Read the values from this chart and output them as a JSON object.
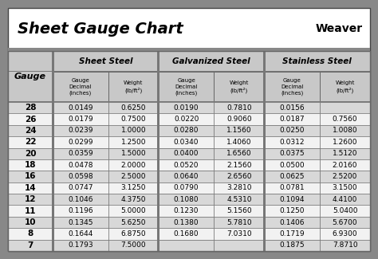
{
  "title": "Sheet Gauge Chart",
  "outer_bg": "#888888",
  "inner_bg": "#ffffff",
  "header_gray": "#c8c8c8",
  "row_gray": "#d8d8d8",
  "row_white": "#f2f2f2",
  "border_color": "#666666",
  "section_headers": [
    "Sheet Steel",
    "Galvanized Steel",
    "Stainless Steel"
  ],
  "gauges": [
    28,
    26,
    24,
    22,
    20,
    18,
    16,
    14,
    12,
    11,
    10,
    8,
    7
  ],
  "sheet_steel_decimal": [
    "0.0149",
    "0.0179",
    "0.0239",
    "0.0299",
    "0.0359",
    "0.0478",
    "0.0598",
    "0.0747",
    "0.1046",
    "0.1196",
    "0.1345",
    "0.1644",
    "0.1793"
  ],
  "sheet_steel_weight": [
    "0.6250",
    "0.7500",
    "1.0000",
    "1.2500",
    "1.5000",
    "2.0000",
    "2.5000",
    "3.1250",
    "4.3750",
    "5.0000",
    "5.6250",
    "6.8750",
    "7.5000"
  ],
  "galvanized_decimal": [
    "0.0190",
    "0.0220",
    "0.0280",
    "0.0340",
    "0.0400",
    "0.0520",
    "0.0640",
    "0.0790",
    "0.1080",
    "0.1230",
    "0.1380",
    "0.1680",
    ""
  ],
  "galvanized_weight": [
    "0.7810",
    "0.9060",
    "1.1560",
    "1.4060",
    "1.6560",
    "2.1560",
    "2.6560",
    "3.2810",
    "4.5310",
    "5.1560",
    "5.7810",
    "7.0310",
    ""
  ],
  "stainless_decimal": [
    "0.0156",
    "0.0187",
    "0.0250",
    "0.0312",
    "0.0375",
    "0.0500",
    "0.0625",
    "0.0781",
    "0.1094",
    "0.1250",
    "0.1406",
    "0.1719",
    "0.1875"
  ],
  "stainless_weight": [
    "",
    "0.7560",
    "1.0080",
    "1.2600",
    "1.5120",
    "2.0160",
    "2.5200",
    "3.1500",
    "4.4100",
    "5.0400",
    "5.6700",
    "6.9300",
    "7.8710"
  ]
}
